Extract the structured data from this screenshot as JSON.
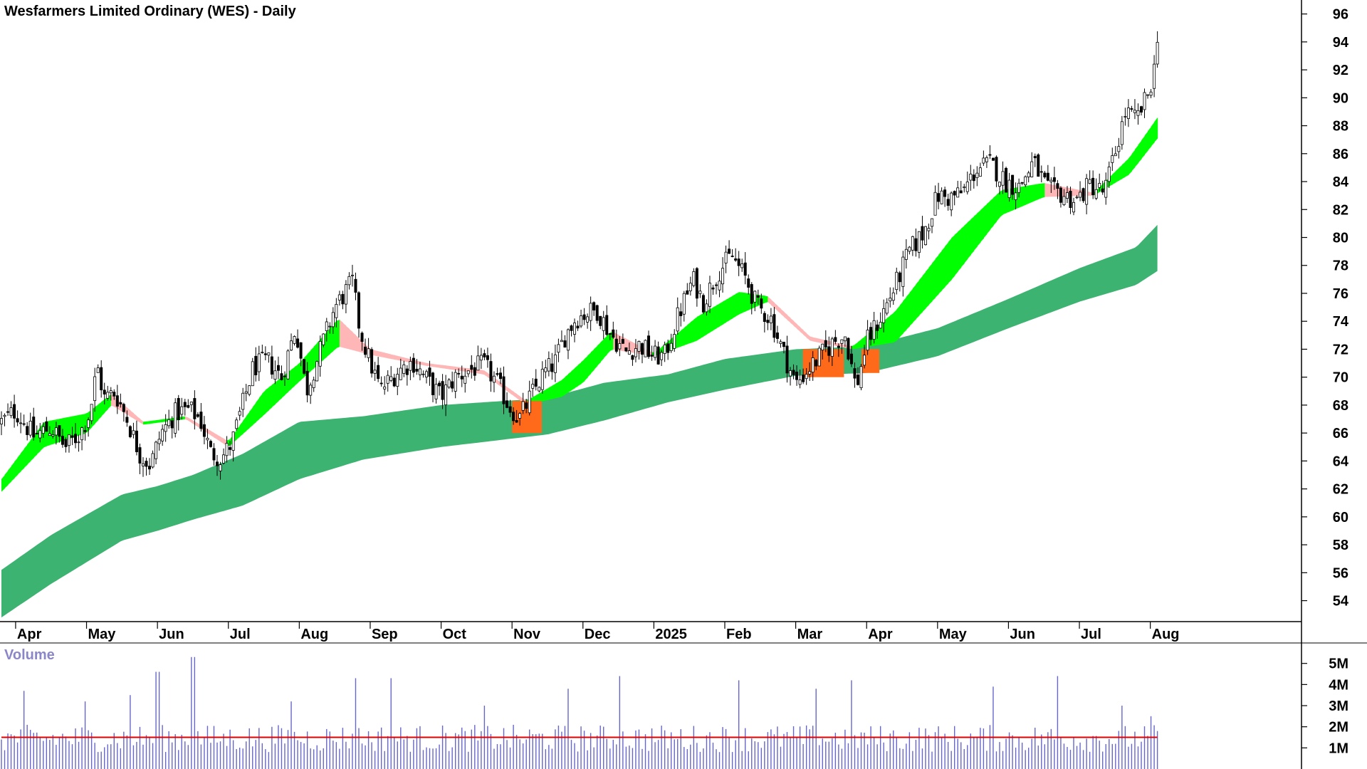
{
  "chart_data": {
    "type": "candlestick",
    "title": "Wesfarmers Limited Ordinary (WES) - Daily",
    "price_axis": {
      "ylim": [
        52.5,
        97
      ],
      "ticks": [
        54,
        56,
        58,
        60,
        62,
        64,
        66,
        68,
        70,
        72,
        74,
        76,
        78,
        80,
        82,
        84,
        86,
        88,
        90,
        92,
        94,
        96
      ]
    },
    "x_axis": {
      "start_month_index": 2.8,
      "end_month_index": 20.65,
      "month_labels": [
        {
          "label": "Apr",
          "index": 3
        },
        {
          "label": "May",
          "index": 4
        },
        {
          "label": "Jun",
          "index": 5
        },
        {
          "label": "Jul",
          "index": 6
        },
        {
          "label": "Aug",
          "index": 7
        },
        {
          "label": "Sep",
          "index": 8
        },
        {
          "label": "Oct",
          "index": 9
        },
        {
          "label": "Nov",
          "index": 10
        },
        {
          "label": "Dec",
          "index": 11
        },
        {
          "label": "2025",
          "index": 12
        },
        {
          "label": "Feb",
          "index": 13
        },
        {
          "label": "Mar",
          "index": 14
        },
        {
          "label": "Apr",
          "index": 15
        },
        {
          "label": "May",
          "index": 16
        },
        {
          "label": "Jun",
          "index": 17
        },
        {
          "label": "Jul",
          "index": 18
        },
        {
          "label": "Aug",
          "index": 19
        }
      ]
    },
    "price_path": [
      [
        2.8,
        66.8
      ],
      [
        3.0,
        67.6
      ],
      [
        3.25,
        65.8
      ],
      [
        3.5,
        66.4
      ],
      [
        3.7,
        65.0
      ],
      [
        3.9,
        65.9
      ],
      [
        4.05,
        67.5
      ],
      [
        4.15,
        70.8
      ],
      [
        4.25,
        68.5
      ],
      [
        4.4,
        68.9
      ],
      [
        4.55,
        67.3
      ],
      [
        4.75,
        64.5
      ],
      [
        4.9,
        63.7
      ],
      [
        5.05,
        66.0
      ],
      [
        5.25,
        67.4
      ],
      [
        5.45,
        67.7
      ],
      [
        5.6,
        67.0
      ],
      [
        5.75,
        64.6
      ],
      [
        5.9,
        64.2
      ],
      [
        6.05,
        65.3
      ],
      [
        6.2,
        68.0
      ],
      [
        6.35,
        70.7
      ],
      [
        6.55,
        71.2
      ],
      [
        6.75,
        70.0
      ],
      [
        6.95,
        73.6
      ],
      [
        7.1,
        69.0
      ],
      [
        7.3,
        72.0
      ],
      [
        7.5,
        75.0
      ],
      [
        7.75,
        76.8
      ],
      [
        7.85,
        73.5
      ],
      [
        8.0,
        71.0
      ],
      [
        8.15,
        69.1
      ],
      [
        8.4,
        70.5
      ],
      [
        8.6,
        71.1
      ],
      [
        8.8,
        69.8
      ],
      [
        9.0,
        68.6
      ],
      [
        9.2,
        70.0
      ],
      [
        9.4,
        70.5
      ],
      [
        9.6,
        70.9
      ],
      [
        9.8,
        69.5
      ],
      [
        9.95,
        68.0
      ],
      [
        10.1,
        67.0
      ],
      [
        10.25,
        68.5
      ],
      [
        10.45,
        70.3
      ],
      [
        10.6,
        71.0
      ],
      [
        10.75,
        73.0
      ],
      [
        10.9,
        74.2
      ],
      [
        11.05,
        74.6
      ],
      [
        11.2,
        74.8
      ],
      [
        11.4,
        73.0
      ],
      [
        11.6,
        71.8
      ],
      [
        11.8,
        72.3
      ],
      [
        12.0,
        71.5
      ],
      [
        12.15,
        71.5
      ],
      [
        12.35,
        74.5
      ],
      [
        12.55,
        77.0
      ],
      [
        12.7,
        75.4
      ],
      [
        12.9,
        77.5
      ],
      [
        13.1,
        78.7
      ],
      [
        13.3,
        77.0
      ],
      [
        13.45,
        75.1
      ],
      [
        13.65,
        74.2
      ],
      [
        13.8,
        72.1
      ],
      [
        14.0,
        69.5
      ],
      [
        14.2,
        70.7
      ],
      [
        14.4,
        71.8
      ],
      [
        14.55,
        72.6
      ],
      [
        14.7,
        73.0
      ],
      [
        14.85,
        69.2
      ],
      [
        15.0,
        72.5
      ],
      [
        15.2,
        74.3
      ],
      [
        15.4,
        76.5
      ],
      [
        15.6,
        79.0
      ],
      [
        15.8,
        80.3
      ],
      [
        16.0,
        83.0
      ],
      [
        16.15,
        82.8
      ],
      [
        16.35,
        83.2
      ],
      [
        16.55,
        84.9
      ],
      [
        16.75,
        85.3
      ],
      [
        16.95,
        84.0
      ],
      [
        17.15,
        83.6
      ],
      [
        17.35,
        85.4
      ],
      [
        17.55,
        83.4
      ],
      [
        17.75,
        83.1
      ],
      [
        17.95,
        82.6
      ],
      [
        18.15,
        83.8
      ],
      [
        18.35,
        83.2
      ],
      [
        18.5,
        86.0
      ],
      [
        18.65,
        89.0
      ],
      [
        18.8,
        88.4
      ],
      [
        18.95,
        90.0
      ],
      [
        19.05,
        91.8
      ],
      [
        19.1,
        94.6
      ]
    ],
    "short_term_band": {
      "fast_path": [
        [
          2.8,
          62.7
        ],
        [
          3.4,
          66.8
        ],
        [
          4.0,
          67.4
        ],
        [
          4.35,
          68.8
        ],
        [
          4.8,
          66.8
        ],
        [
          5.4,
          67.2
        ],
        [
          6.0,
          65.4
        ],
        [
          6.5,
          69.0
        ],
        [
          7.0,
          71.0
        ],
        [
          7.55,
          74.2
        ],
        [
          8.0,
          72.0
        ],
        [
          8.8,
          71.0
        ],
        [
          9.6,
          70.5
        ],
        [
          10.2,
          68.3
        ],
        [
          10.7,
          69.8
        ],
        [
          11.0,
          71.2
        ],
        [
          11.4,
          73.3
        ],
        [
          12.0,
          71.7
        ],
        [
          12.6,
          74.3
        ],
        [
          13.2,
          76.1
        ],
        [
          13.6,
          75.8
        ],
        [
          14.2,
          72.9
        ],
        [
          14.8,
          72.2
        ],
        [
          15.4,
          74.7
        ],
        [
          16.2,
          80.0
        ],
        [
          16.9,
          83.4
        ],
        [
          17.5,
          83.9
        ],
        [
          18.2,
          83.2
        ],
        [
          18.7,
          85.7
        ],
        [
          19.1,
          88.6
        ]
      ],
      "slow_path": [
        [
          2.8,
          61.8
        ],
        [
          3.4,
          65.0
        ],
        [
          4.0,
          66.0
        ],
        [
          4.35,
          68.0
        ],
        [
          4.8,
          66.6
        ],
        [
          5.4,
          67.0
        ],
        [
          6.0,
          65.0
        ],
        [
          6.5,
          67.3
        ],
        [
          7.0,
          69.7
        ],
        [
          7.55,
          72.2
        ],
        [
          8.0,
          71.6
        ],
        [
          8.8,
          70.8
        ],
        [
          9.6,
          70.2
        ],
        [
          10.2,
          68.0
        ],
        [
          10.7,
          68.6
        ],
        [
          11.0,
          69.6
        ],
        [
          11.4,
          72.0
        ],
        [
          12.0,
          71.5
        ],
        [
          12.6,
          72.6
        ],
        [
          13.2,
          74.5
        ],
        [
          13.6,
          75.4
        ],
        [
          14.2,
          72.6
        ],
        [
          14.8,
          72.0
        ],
        [
          15.4,
          72.5
        ],
        [
          16.2,
          77.0
        ],
        [
          16.9,
          81.6
        ],
        [
          17.5,
          82.9
        ],
        [
          18.2,
          83.0
        ],
        [
          18.7,
          84.5
        ],
        [
          19.1,
          87.1
        ]
      ]
    },
    "long_term_band": {
      "upper_path": [
        [
          2.8,
          56.2
        ],
        [
          3.5,
          58.7
        ],
        [
          4.5,
          61.6
        ],
        [
          5.0,
          62.2
        ],
        [
          5.5,
          63.0
        ],
        [
          6.2,
          64.5
        ],
        [
          7.0,
          66.8
        ],
        [
          7.9,
          67.2
        ],
        [
          9.0,
          68.0
        ],
        [
          10.5,
          68.5
        ],
        [
          11.3,
          69.6
        ],
        [
          12.2,
          70.2
        ],
        [
          13.0,
          71.3
        ],
        [
          14.0,
          72.0
        ],
        [
          15.0,
          72.2
        ],
        [
          16.0,
          73.5
        ],
        [
          17.0,
          75.6
        ],
        [
          18.0,
          77.8
        ],
        [
          18.8,
          79.3
        ],
        [
          19.1,
          80.9
        ]
      ],
      "lower_path": [
        [
          2.8,
          52.8
        ],
        [
          3.5,
          55.2
        ],
        [
          4.5,
          58.3
        ],
        [
          5.0,
          59.0
        ],
        [
          5.5,
          59.8
        ],
        [
          6.2,
          60.8
        ],
        [
          7.0,
          62.7
        ],
        [
          7.9,
          64.1
        ],
        [
          9.0,
          65.0
        ],
        [
          10.5,
          65.9
        ],
        [
          11.3,
          66.9
        ],
        [
          12.2,
          68.2
        ],
        [
          13.0,
          69.1
        ],
        [
          14.0,
          70.1
        ],
        [
          15.0,
          70.3
        ],
        [
          16.0,
          71.5
        ],
        [
          17.0,
          73.5
        ],
        [
          18.0,
          75.4
        ],
        [
          18.8,
          76.6
        ],
        [
          19.1,
          77.6
        ]
      ]
    },
    "colors": {
      "up_band": "#00ff00",
      "down_band": "#ff6a1a",
      "weak_band": "#ffb6b6",
      "long_band": "#3cb371",
      "candle": "#000000",
      "volume_bar": "#6666cc",
      "volume_avg": "#e00000"
    },
    "volume": {
      "label": "Volume",
      "ylim": [
        0,
        5.9
      ],
      "tick_labels": [
        {
          "value": 1,
          "label": "1M"
        },
        {
          "value": 2,
          "label": "2M"
        },
        {
          "value": 3,
          "label": "3M"
        },
        {
          "value": 4,
          "label": "4M"
        },
        {
          "value": 5,
          "label": "5M"
        }
      ],
      "average": 1.5,
      "spikes": [
        [
          3.1,
          3.7
        ],
        [
          4.0,
          3.2
        ],
        [
          4.6,
          3.5
        ],
        [
          5.0,
          4.6
        ],
        [
          5.5,
          5.3
        ],
        [
          6.9,
          3.2
        ],
        [
          7.8,
          4.3
        ],
        [
          8.3,
          4.3
        ],
        [
          9.6,
          3.0
        ],
        [
          10.8,
          3.8
        ],
        [
          11.5,
          4.4
        ],
        [
          13.2,
          4.2
        ],
        [
          14.3,
          3.8
        ],
        [
          14.8,
          4.2
        ],
        [
          16.8,
          3.9
        ],
        [
          17.7,
          4.4
        ],
        [
          18.6,
          3.0
        ],
        [
          19.0,
          2.5
        ]
      ]
    }
  }
}
